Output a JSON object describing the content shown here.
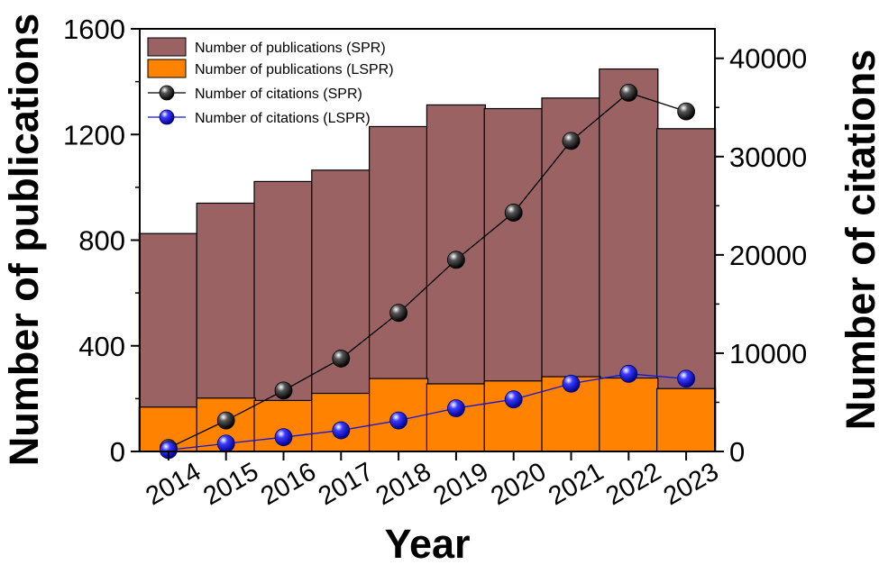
{
  "chart_data": {
    "type": "bar",
    "title": "",
    "xlabel": "Year",
    "ylabel": "Number of publications",
    "y2label": "Number of citations",
    "categories": [
      "2014",
      "2015",
      "2016",
      "2017",
      "2018",
      "2019",
      "2020",
      "2021",
      "2022",
      "2023"
    ],
    "ylim": [
      0,
      1600
    ],
    "y2lim": [
      0,
      43000
    ],
    "yticks": [
      0,
      400,
      800,
      1200,
      1600
    ],
    "y2ticks": [
      0,
      10000,
      20000,
      30000,
      40000
    ],
    "legend_position": "top-left",
    "grid": false,
    "bar_series": [
      {
        "name": "Number of publications (SPR)",
        "color": "#9a6262",
        "values": [
          825,
          940,
          1022,
          1065,
          1230,
          1312,
          1298,
          1338,
          1448,
          1222
        ]
      },
      {
        "name": "Number of publications (LSPR)",
        "color": "#ff8200",
        "values": [
          168,
          202,
          193,
          220,
          276,
          256,
          267,
          283,
          278,
          238
        ]
      }
    ],
    "line_series": [
      {
        "name": "Number of citations (SPR)",
        "axis": "right",
        "color": "#000000",
        "marker_color": "#111111",
        "values": [
          350,
          3150,
          6200,
          9450,
          14100,
          19500,
          24300,
          31600,
          36500,
          34600
        ]
      },
      {
        "name": "Number of citations (LSPR)",
        "axis": "right",
        "color": "#1515d9",
        "marker_color": "#1a1aff",
        "values": [
          150,
          800,
          1450,
          2150,
          3150,
          4400,
          5300,
          6900,
          7900,
          7400
        ]
      }
    ]
  }
}
